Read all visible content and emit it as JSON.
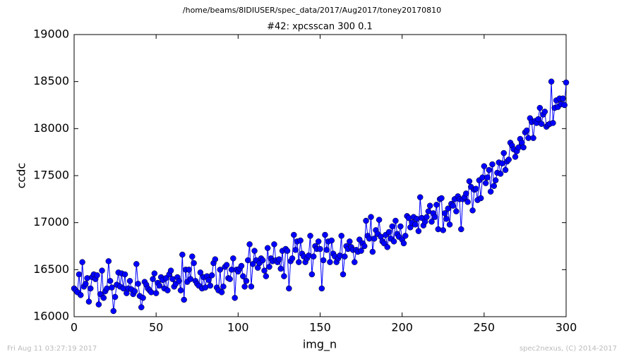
{
  "chart_data": {
    "type": "line",
    "header": "/home/beams/8IDIUSER/spec_data/2017/Aug2017/toney20170810",
    "title": "#42: xpcsscan 300 0.1",
    "xlabel": "img_n",
    "ylabel": "ccdc",
    "footer_left": "Fri Aug 11 03:27:19 2017",
    "footer_right": "spec2nexus, (C) 2014-2017",
    "xlim": [
      0,
      300
    ],
    "xticks": [
      0,
      50,
      100,
      150,
      200,
      250,
      300
    ],
    "ylim": [
      16000,
      19000
    ],
    "yticks": [
      16000,
      16500,
      17000,
      17500,
      18000,
      18500,
      19000
    ],
    "grid": false,
    "series": [
      {
        "name": "ccdc",
        "color": "#0000ff",
        "x": [
          0,
          1,
          2,
          3,
          4,
          5,
          6,
          7,
          8,
          9,
          10,
          11,
          12,
          13,
          14,
          15,
          16,
          17,
          18,
          19,
          20,
          21,
          22,
          23,
          24,
          25,
          26,
          27,
          28,
          29,
          30,
          31,
          32,
          33,
          34,
          35,
          36,
          37,
          38,
          39,
          40,
          41,
          42,
          43,
          44,
          45,
          46,
          47,
          48,
          49,
          50,
          51,
          52,
          53,
          54,
          55,
          56,
          57,
          58,
          59,
          60,
          61,
          62,
          63,
          64,
          65,
          66,
          67,
          68,
          69,
          70,
          71,
          72,
          73,
          74,
          75,
          76,
          77,
          78,
          79,
          80,
          81,
          82,
          83,
          84,
          85,
          86,
          87,
          88,
          89,
          90,
          91,
          92,
          93,
          94,
          95,
          96,
          97,
          98,
          99,
          100,
          101,
          102,
          103,
          104,
          105,
          106,
          107,
          108,
          109,
          110,
          111,
          112,
          113,
          114,
          115,
          116,
          117,
          118,
          119,
          120,
          121,
          122,
          123,
          124,
          125,
          126,
          127,
          128,
          129,
          130,
          131,
          132,
          133,
          134,
          135,
          136,
          137,
          138,
          139,
          140,
          141,
          142,
          143,
          144,
          145,
          146,
          147,
          148,
          149,
          150,
          151,
          152,
          153,
          154,
          155,
          156,
          157,
          158,
          159,
          160,
          161,
          162,
          163,
          164,
          165,
          166,
          167,
          168,
          169,
          170,
          171,
          172,
          173,
          174,
          175,
          176,
          177,
          178,
          179,
          180,
          181,
          182,
          183,
          184,
          185,
          186,
          187,
          188,
          189,
          190,
          191,
          192,
          193,
          194,
          195,
          196,
          197,
          198,
          199,
          200,
          201,
          202,
          203,
          204,
          205,
          206,
          207,
          208,
          209,
          210,
          211,
          212,
          213,
          214,
          215,
          216,
          217,
          218,
          219,
          220,
          221,
          222,
          223,
          224,
          225,
          226,
          227,
          228,
          229,
          230,
          231,
          232,
          233,
          234,
          235,
          236,
          237,
          238,
          239,
          240,
          241,
          242,
          243,
          244,
          245,
          246,
          247,
          248,
          249,
          250,
          251,
          252,
          253,
          254,
          255,
          256,
          257,
          258,
          259,
          260,
          261,
          262,
          263,
          264,
          265,
          266,
          267,
          268,
          269,
          270,
          271,
          272,
          273,
          274,
          275,
          276,
          277,
          278,
          279,
          280,
          281,
          282,
          283,
          284,
          285,
          286,
          287,
          288,
          289,
          290,
          291,
          292,
          293,
          294,
          295,
          296,
          297,
          298,
          299,
          300
        ],
        "values": [
          16300,
          16280,
          16260,
          16450,
          16230,
          16580,
          16320,
          16350,
          16410,
          16160,
          16300,
          16420,
          16450,
          16400,
          16440,
          16130,
          16240,
          16490,
          16200,
          16270,
          16300,
          16590,
          16380,
          16310,
          16060,
          16210,
          16340,
          16470,
          16320,
          16460,
          16300,
          16450,
          16250,
          16300,
          16380,
          16290,
          16240,
          16270,
          16560,
          16350,
          16220,
          16100,
          16200,
          16370,
          16340,
          16300,
          16280,
          16260,
          16400,
          16460,
          16250,
          16360,
          16330,
          16420,
          16390,
          16300,
          16410,
          16280,
          16450,
          16490,
          16400,
          16320,
          16350,
          16420,
          16380,
          16280,
          16660,
          16180,
          16500,
          16370,
          16500,
          16400,
          16640,
          16570,
          16380,
          16350,
          16330,
          16470,
          16300,
          16420,
          16310,
          16430,
          16390,
          16330,
          16440,
          16570,
          16610,
          16310,
          16280,
          16500,
          16260,
          16320,
          16530,
          16550,
          16410,
          16400,
          16500,
          16620,
          16200,
          16500,
          16480,
          16510,
          16540,
          16430,
          16320,
          16380,
          16600,
          16770,
          16320,
          16560,
          16700,
          16600,
          16520,
          16570,
          16620,
          16600,
          16490,
          16430,
          16730,
          16530,
          16620,
          16590,
          16770,
          16600,
          16580,
          16610,
          16510,
          16700,
          16430,
          16720,
          16700,
          16300,
          16590,
          16620,
          16870,
          16710,
          16800,
          16580,
          16810,
          16670,
          16640,
          16580,
          16620,
          16650,
          16860,
          16450,
          16640,
          16750,
          16720,
          16800,
          16720,
          16300,
          16600,
          16870,
          16710,
          16800,
          16580,
          16810,
          16670,
          16640,
          16580,
          16620,
          16650,
          16860,
          16450,
          16640,
          16750,
          16720,
          16800,
          16740,
          16710,
          16580,
          16710,
          16690,
          16820,
          16700,
          16780,
          16750,
          17020,
          16860,
          16830,
          17060,
          16690,
          16830,
          16920,
          16880,
          17030,
          16850,
          16800,
          16780,
          16870,
          16740,
          16900,
          16830,
          16960,
          16800,
          17020,
          16880,
          16850,
          16960,
          16820,
          16780,
          16860,
          17070,
          17050,
          16950,
          17000,
          17060,
          16980,
          17040,
          16910,
          17270,
          17050,
          16970,
          17010,
          17060,
          17120,
          17180,
          17010,
          17100,
          17060,
          17190,
          16930,
          17250,
          17260,
          16920,
          17100,
          17040,
          17150,
          16980,
          17200,
          17180,
          17250,
          17120,
          17280,
          17250,
          16930,
          17250,
          17270,
          17310,
          17220,
          17440,
          17380,
          17130,
          17350,
          17360,
          17240,
          17450,
          17260,
          17480,
          17600,
          17420,
          17480,
          17560,
          17330,
          17620,
          17390,
          17450,
          17530,
          17640,
          17520,
          17630,
          17740,
          17560,
          17650,
          17670,
          17850,
          17820,
          17780,
          17700,
          17760,
          17800,
          17890,
          17850,
          17800,
          17960,
          17980,
          17900,
          18110,
          18070,
          17900,
          18080,
          18060,
          18100,
          18220,
          18050,
          18150,
          18180,
          18020,
          18040,
          18050,
          18500,
          18060,
          18220,
          18300,
          18230,
          18320,
          18260,
          18320,
          18250,
          18490
        ]
      }
    ]
  }
}
